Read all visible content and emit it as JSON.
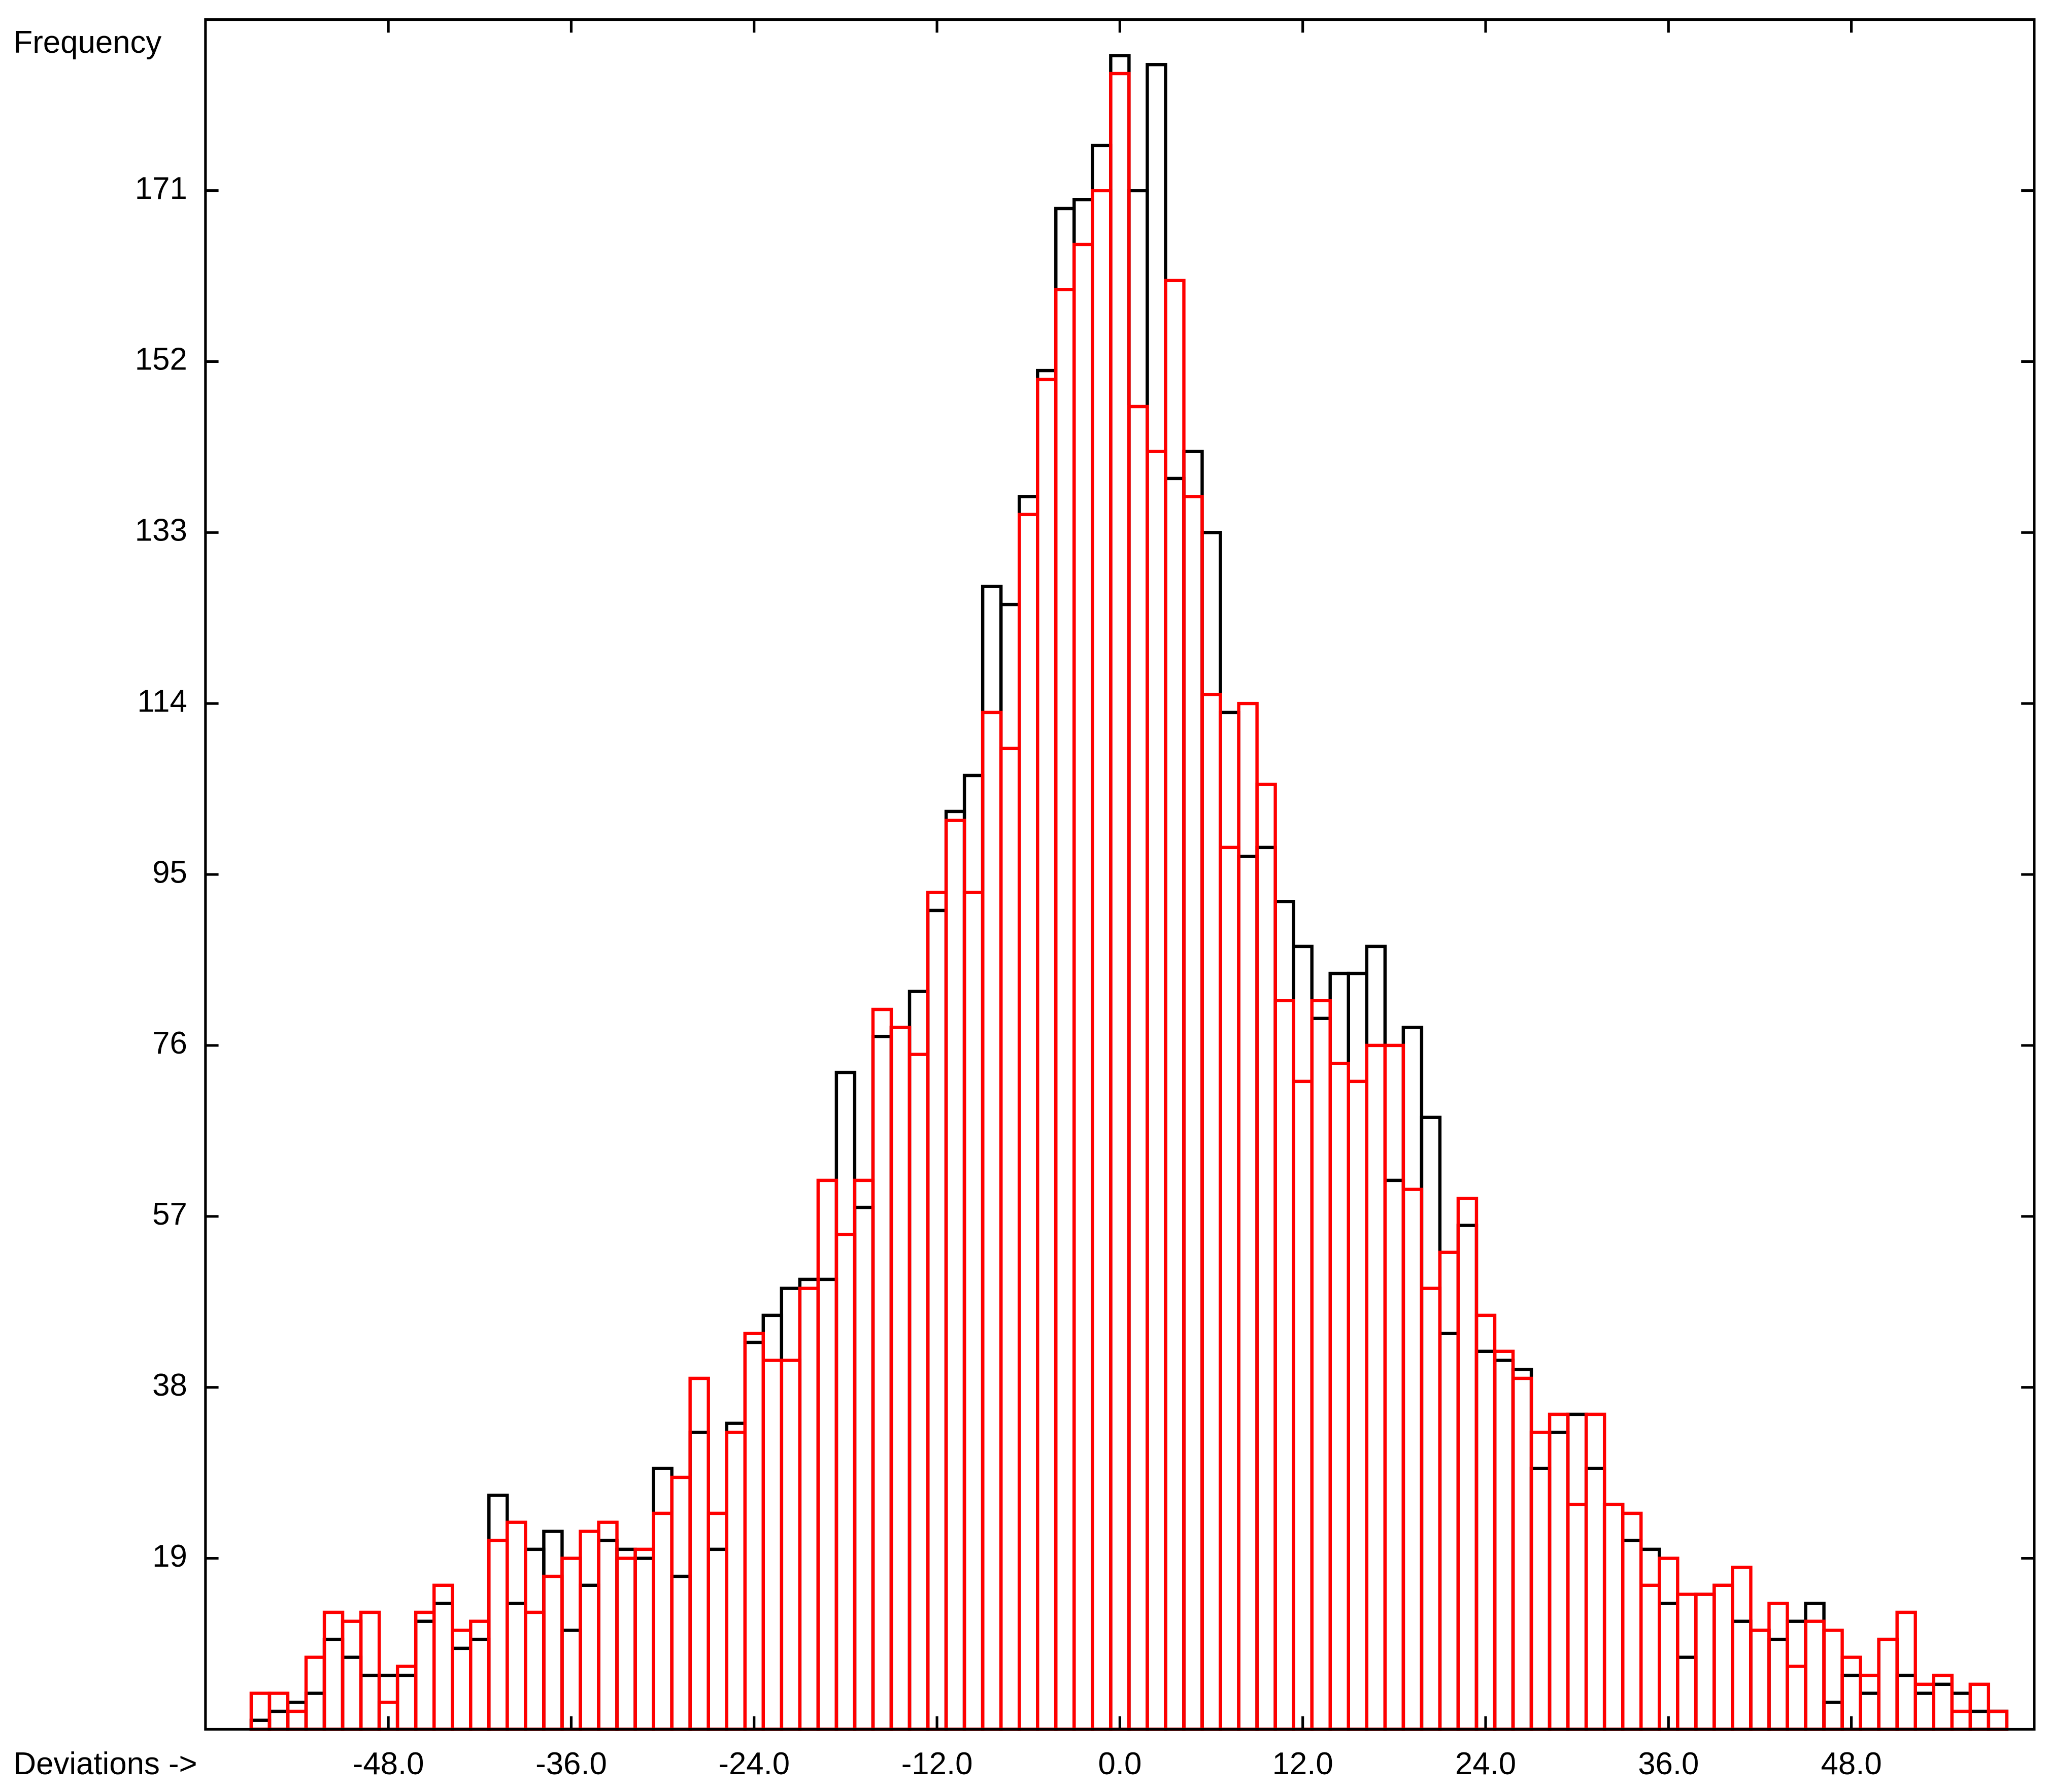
{
  "chart_data": {
    "type": "histogram",
    "y_label": "Frequency",
    "x_label": "Deviations ->",
    "bins": [
      -57,
      -55.8,
      -54.6,
      -53.4,
      -52.2,
      -51,
      -49.8,
      -48.6,
      -47.4,
      -46.2,
      -45,
      -43.8,
      -42.6,
      -41.4,
      -40.2,
      -39,
      -37.8,
      -36.6,
      -35.4,
      -34.2,
      -33,
      -31.8,
      -30.6,
      -29.4,
      -28.2,
      -27,
      -25.8,
      -24.6,
      -23.4,
      -22.2,
      -21,
      -19.8,
      -18.6,
      -17.4,
      -16.2,
      -15,
      -13.8,
      -12.6,
      -11.4,
      -10.2,
      -9,
      -7.8,
      -6.6,
      -5.4,
      -4.2,
      -3,
      -1.8,
      -0.6,
      0.6,
      1.8,
      3,
      4.2,
      5.4,
      6.6,
      7.8,
      9,
      10.2,
      11.4,
      12.6,
      13.8,
      15,
      16.2,
      17.4,
      18.6,
      19.8,
      21,
      22.2,
      23.4,
      24.6,
      25.8,
      27,
      28.2,
      29.4,
      30.6,
      31.8,
      33,
      34.2,
      35.4,
      36.6,
      37.8,
      39,
      40.2,
      41.4,
      42.6,
      43.8,
      45,
      46.2,
      47.4,
      48.6,
      49.8,
      51,
      52.2,
      53.4,
      54.6,
      55.8,
      57,
      58.2
    ],
    "series": [
      {
        "color": "#000000",
        "values": [
          1,
          2,
          3,
          4,
          10,
          8,
          6,
          6,
          6,
          12,
          14,
          9,
          10,
          26,
          14,
          20,
          22,
          11,
          16,
          21,
          20,
          19,
          29,
          17,
          33,
          20,
          34,
          43,
          46,
          49,
          50,
          50,
          73,
          58,
          77,
          78,
          82,
          91,
          102,
          106,
          127,
          125,
          137,
          151,
          169,
          170,
          176,
          186,
          171,
          185,
          139,
          142,
          133,
          113,
          97,
          98,
          92,
          87,
          79,
          84,
          84,
          87,
          61,
          78,
          68,
          44,
          56,
          42,
          41,
          40,
          29,
          33,
          35,
          29,
          25,
          21,
          20,
          14,
          8,
          15,
          16,
          12,
          11,
          10,
          12,
          14,
          3,
          6,
          4,
          10,
          6,
          4,
          5,
          4,
          2,
          2
        ]
      },
      {
        "color": "#ff0000",
        "values": [
          4,
          4,
          2,
          8,
          13,
          12,
          13,
          3,
          7,
          13,
          16,
          11,
          12,
          21,
          23,
          13,
          17,
          19,
          22,
          23,
          19,
          20,
          24,
          28,
          39,
          24,
          33,
          44,
          41,
          41,
          49,
          61,
          55,
          61,
          80,
          78,
          75,
          93,
          101,
          93,
          113,
          109,
          135,
          150,
          160,
          165,
          171,
          184,
          147,
          142,
          161,
          137,
          115,
          98,
          114,
          105,
          81,
          72,
          81,
          74,
          72,
          76,
          76,
          60,
          49,
          53,
          59,
          46,
          42,
          39,
          33,
          35,
          25,
          35,
          25,
          24,
          16,
          19,
          15,
          15,
          16,
          18,
          11,
          14,
          7,
          12,
          11,
          8,
          6,
          10,
          13,
          5,
          6,
          2,
          5,
          2
        ]
      }
    ],
    "xlim": [
      -60,
      60
    ],
    "ylim": [
      0,
      190
    ],
    "xticks": [
      {
        "value": -48,
        "label": "-48.0"
      },
      {
        "value": -36,
        "label": "-36.0"
      },
      {
        "value": -24,
        "label": "-24.0"
      },
      {
        "value": -12,
        "label": "-12.0"
      },
      {
        "value": 0,
        "label": "0.0"
      },
      {
        "value": 12,
        "label": "12.0"
      },
      {
        "value": 24,
        "label": "24.0"
      },
      {
        "value": 36,
        "label": "36.0"
      },
      {
        "value": 48,
        "label": "48.0"
      }
    ],
    "yticks": [
      19,
      38,
      57,
      76,
      95,
      114,
      133,
      152,
      171
    ]
  }
}
